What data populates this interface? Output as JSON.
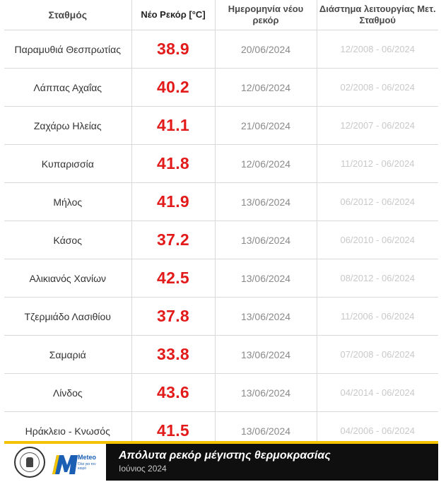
{
  "table": {
    "headers": {
      "station": "Σταθμός",
      "record": "Νέο Ρεκόρ [°C]",
      "date": "Ημερομηνία νέου ρεκόρ",
      "period": "Διάστημα λειτουργίας Μετ. Σταθμού"
    },
    "rows": [
      {
        "station": "Παραμυθιά Θεσπρωτίας",
        "record": "38.9",
        "date": "20/06/2024",
        "period": "12/2008 - 06/2024"
      },
      {
        "station": "Λάππας Αχαΐας",
        "record": "40.2",
        "date": "12/06/2024",
        "period": "02/2008 - 06/2024"
      },
      {
        "station": "Ζαχάρω Ηλείας",
        "record": "41.1",
        "date": "21/06/2024",
        "period": "12/2007 - 06/2024"
      },
      {
        "station": "Κυπαρισσία",
        "record": "41.8",
        "date": "12/06/2024",
        "period": "11/2012 - 06/2024"
      },
      {
        "station": "Μήλος",
        "record": "41.9",
        "date": "13/06/2024",
        "period": "06/2012 - 06/2024"
      },
      {
        "station": "Κάσος",
        "record": "37.2",
        "date": "13/06/2024",
        "period": "06/2010 - 06/2024"
      },
      {
        "station": "Αλικιανός Χανίων",
        "record": "42.5",
        "date": "13/06/2024",
        "period": "08/2012 - 06/2024"
      },
      {
        "station": "Τζερμιάδο Λασιθίου",
        "record": "37.8",
        "date": "13/06/2024",
        "period": "11/2006 - 06/2024"
      },
      {
        "station": "Σαμαριά",
        "record": "33.8",
        "date": "13/06/2024",
        "period": "07/2008 - 06/2024"
      },
      {
        "station": "Λίνδος",
        "record": "43.6",
        "date": "13/06/2024",
        "period": "04/2014 - 06/2024"
      },
      {
        "station": "Ηράκλειο - Κνωσός",
        "record": "41.5",
        "date": "13/06/2024",
        "period": "04/2006 - 06/2024"
      }
    ]
  },
  "footer": {
    "logo_text": "Meteo",
    "logo_tagline": "Όλα για τον καιρό",
    "title": "Απόλυτα ρεκόρ μέγιστης θερμοκρασίας",
    "subtitle": "Ιούνιος 2024"
  },
  "colors": {
    "record_red": "#e21a1a",
    "accent_yellow": "#f3c300",
    "footer_dark": "#0f0f0f",
    "logo_blue": "#1a5fb4"
  }
}
